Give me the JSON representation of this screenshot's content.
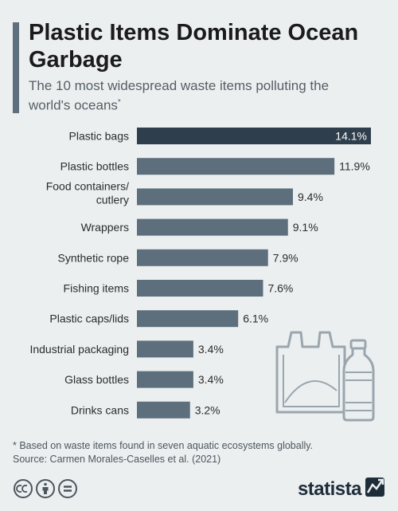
{
  "title": "Plastic Items Dominate Ocean Garbage",
  "subtitle": "The 10 most widespread waste items polluting the world's oceans",
  "subtitle_marker": "*",
  "footnote": "* Based on waste items found in seven aquatic ecosystems globally.",
  "source": "Source: Carmen Morales-Caselles et al. (2021)",
  "brand": "statista",
  "colors": {
    "bar": "#5d6f7c",
    "highlight_bar": "#2f3e4c",
    "background": "#eceff0",
    "accent": "#5d6f7c"
  },
  "icons": [
    "creative-commons-icon",
    "attribution-icon",
    "no-derivatives-icon",
    "statista-logo-icon",
    "plastic-bag-illustration",
    "plastic-bottle-illustration"
  ],
  "chart_data": {
    "type": "bar",
    "orientation": "horizontal",
    "categories": [
      "Plastic bags",
      "Plastic bottles",
      "Food containers/ cutlery",
      "Wrappers",
      "Synthetic rope",
      "Fishing items",
      "Plastic caps/lids",
      "Industrial packaging",
      "Glass bottles",
      "Drinks cans"
    ],
    "values": [
      14.1,
      11.9,
      9.4,
      9.1,
      7.9,
      7.6,
      6.1,
      3.4,
      3.4,
      3.2
    ],
    "value_labels": [
      "14.1%",
      "11.9%",
      "9.4%",
      "9.1%",
      "7.9%",
      "7.6%",
      "6.1%",
      "3.4%",
      "3.4%",
      "3.2%"
    ],
    "unit": "%",
    "xlim": [
      0,
      14.1
    ],
    "highlight_index": 0,
    "grid": false,
    "legend": "none"
  }
}
